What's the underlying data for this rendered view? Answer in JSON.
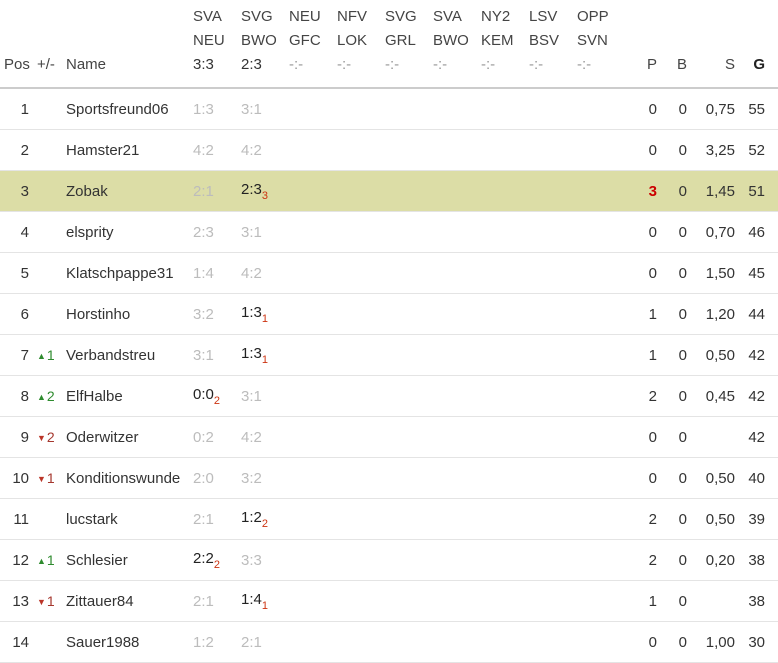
{
  "table": {
    "columns": {
      "pos": "Pos",
      "change": "+/-",
      "name": "Name",
      "p": "P",
      "b": "B",
      "s": "S",
      "g": "G"
    },
    "matches": [
      {
        "home": "SVA",
        "away": "NEU",
        "result": "3:3"
      },
      {
        "home": "SVG",
        "away": "BWO",
        "result": "2:3"
      },
      {
        "home": "NEU",
        "away": "GFC",
        "result": "-:-"
      },
      {
        "home": "NFV",
        "away": "LOK",
        "result": "-:-"
      },
      {
        "home": "SVG",
        "away": "GRL",
        "result": "-:-"
      },
      {
        "home": "SVA",
        "away": "BWO",
        "result": "-:-"
      },
      {
        "home": "NY2",
        "away": "KEM",
        "result": "-:-"
      },
      {
        "home": "LSV",
        "away": "BSV",
        "result": "-:-"
      },
      {
        "home": "OPP",
        "away": "SVN",
        "result": "-:-"
      }
    ],
    "rows": [
      {
        "pos": "1",
        "change": null,
        "name": "Sportsfreund06",
        "tips": [
          {
            "value": "1:3",
            "points": null
          },
          {
            "value": "3:1",
            "points": null
          }
        ],
        "p": "0",
        "b": "0",
        "s": "0,75",
        "g": "55",
        "highlight": false,
        "p_highlight": false
      },
      {
        "pos": "2",
        "change": null,
        "name": "Hamster21",
        "tips": [
          {
            "value": "4:2",
            "points": null
          },
          {
            "value": "4:2",
            "points": null
          }
        ],
        "p": "0",
        "b": "0",
        "s": "3,25",
        "g": "52",
        "highlight": false,
        "p_highlight": false
      },
      {
        "pos": "3",
        "change": null,
        "name": "Zobak",
        "tips": [
          {
            "value": "2:1",
            "points": null
          },
          {
            "value": "2:3",
            "points": "3"
          }
        ],
        "p": "3",
        "b": "0",
        "s": "1,45",
        "g": "51",
        "highlight": true,
        "p_highlight": true
      },
      {
        "pos": "4",
        "change": null,
        "name": "elsprity",
        "tips": [
          {
            "value": "2:3",
            "points": null
          },
          {
            "value": "3:1",
            "points": null
          }
        ],
        "p": "0",
        "b": "0",
        "s": "0,70",
        "g": "46",
        "highlight": false,
        "p_highlight": false
      },
      {
        "pos": "5",
        "change": null,
        "name": "Klatschpappe31",
        "tips": [
          {
            "value": "1:4",
            "points": null
          },
          {
            "value": "4:2",
            "points": null
          }
        ],
        "p": "0",
        "b": "0",
        "s": "1,50",
        "g": "45",
        "highlight": false,
        "p_highlight": false
      },
      {
        "pos": "6",
        "change": null,
        "name": "Horstinho",
        "tips": [
          {
            "value": "3:2",
            "points": null
          },
          {
            "value": "1:3",
            "points": "1"
          }
        ],
        "p": "1",
        "b": "0",
        "s": "1,20",
        "g": "44",
        "highlight": false,
        "p_highlight": false
      },
      {
        "pos": "7",
        "change": {
          "dir": "up",
          "value": "1"
        },
        "name": "Verbandstreu",
        "tips": [
          {
            "value": "3:1",
            "points": null
          },
          {
            "value": "1:3",
            "points": "1"
          }
        ],
        "p": "1",
        "b": "0",
        "s": "0,50",
        "g": "42",
        "highlight": false,
        "p_highlight": false
      },
      {
        "pos": "8",
        "change": {
          "dir": "up",
          "value": "2"
        },
        "name": "ElfHalbe",
        "tips": [
          {
            "value": "0:0",
            "points": "2"
          },
          {
            "value": "3:1",
            "points": null
          }
        ],
        "p": "2",
        "b": "0",
        "s": "0,45",
        "g": "42",
        "highlight": false,
        "p_highlight": false
      },
      {
        "pos": "9",
        "change": {
          "dir": "down",
          "value": "2"
        },
        "name": "Oderwitzer",
        "tips": [
          {
            "value": "0:2",
            "points": null
          },
          {
            "value": "4:2",
            "points": null
          }
        ],
        "p": "0",
        "b": "0",
        "s": "",
        "g": "42",
        "highlight": false,
        "p_highlight": false
      },
      {
        "pos": "10",
        "change": {
          "dir": "down",
          "value": "1"
        },
        "name": "Konditionswunde",
        "tips": [
          {
            "value": "2:0",
            "points": null
          },
          {
            "value": "3:2",
            "points": null
          }
        ],
        "p": "0",
        "b": "0",
        "s": "0,50",
        "g": "40",
        "highlight": false,
        "p_highlight": false
      },
      {
        "pos": "11",
        "change": null,
        "name": "lucstark",
        "tips": [
          {
            "value": "2:1",
            "points": null
          },
          {
            "value": "1:2",
            "points": "2"
          }
        ],
        "p": "2",
        "b": "0",
        "s": "0,50",
        "g": "39",
        "highlight": false,
        "p_highlight": false
      },
      {
        "pos": "12",
        "change": {
          "dir": "up",
          "value": "1"
        },
        "name": "Schlesier",
        "tips": [
          {
            "value": "2:2",
            "points": "2"
          },
          {
            "value": "3:3",
            "points": null
          }
        ],
        "p": "2",
        "b": "0",
        "s": "0,20",
        "g": "38",
        "highlight": false,
        "p_highlight": false
      },
      {
        "pos": "13",
        "change": {
          "dir": "down",
          "value": "1"
        },
        "name": "Zittauer84",
        "tips": [
          {
            "value": "2:1",
            "points": null
          },
          {
            "value": "1:4",
            "points": "1"
          }
        ],
        "p": "1",
        "b": "0",
        "s": "",
        "g": "38",
        "highlight": false,
        "p_highlight": false
      },
      {
        "pos": "14",
        "change": null,
        "name": "Sauer1988",
        "tips": [
          {
            "value": "1:2",
            "points": null
          },
          {
            "value": "2:1",
            "points": null
          }
        ],
        "p": "0",
        "b": "0",
        "s": "1,00",
        "g": "30",
        "highlight": false,
        "p_highlight": false
      }
    ]
  }
}
